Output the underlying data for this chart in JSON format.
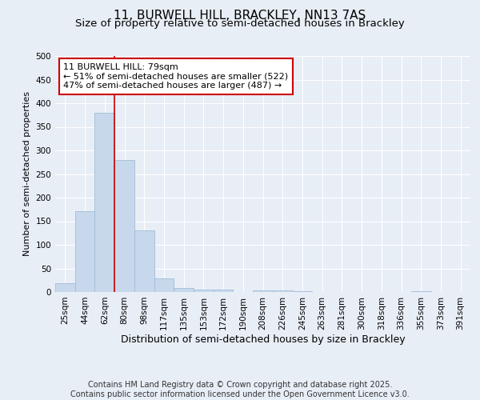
{
  "title1": "11, BURWELL HILL, BRACKLEY, NN13 7AS",
  "title2": "Size of property relative to semi-detached houses in Brackley",
  "xlabel": "Distribution of semi-detached houses by size in Brackley",
  "ylabel": "Number of semi-detached properties",
  "categories": [
    "25sqm",
    "44sqm",
    "62sqm",
    "80sqm",
    "98sqm",
    "117sqm",
    "135sqm",
    "153sqm",
    "172sqm",
    "190sqm",
    "208sqm",
    "226sqm",
    "245sqm",
    "263sqm",
    "281sqm",
    "300sqm",
    "318sqm",
    "336sqm",
    "355sqm",
    "373sqm",
    "391sqm"
  ],
  "values": [
    18,
    172,
    380,
    280,
    130,
    28,
    8,
    5,
    5,
    0,
    3,
    3,
    2,
    0,
    0,
    0,
    0,
    0,
    2,
    0,
    0
  ],
  "bar_color": "#c8d8ec",
  "bar_edge_color": "#a0bcd8",
  "vline_color": "#cc0000",
  "annotation_box_text": "11 BURWELL HILL: 79sqm\n← 51% of semi-detached houses are smaller (522)\n47% of semi-detached houses are larger (487) →",
  "annotation_box_color": "#cc0000",
  "footer_text": "Contains HM Land Registry data © Crown copyright and database right 2025.\nContains public sector information licensed under the Open Government Licence v3.0.",
  "ylim": [
    0,
    500
  ],
  "yticks": [
    0,
    50,
    100,
    150,
    200,
    250,
    300,
    350,
    400,
    450,
    500
  ],
  "background_color": "#e8eef6",
  "plot_bg_color": "#e8eef6",
  "grid_color": "#ffffff",
  "title1_fontsize": 11,
  "title2_fontsize": 9.5,
  "xlabel_fontsize": 9,
  "ylabel_fontsize": 8,
  "tick_fontsize": 7.5,
  "annot_fontsize": 8,
  "footer_fontsize": 7
}
